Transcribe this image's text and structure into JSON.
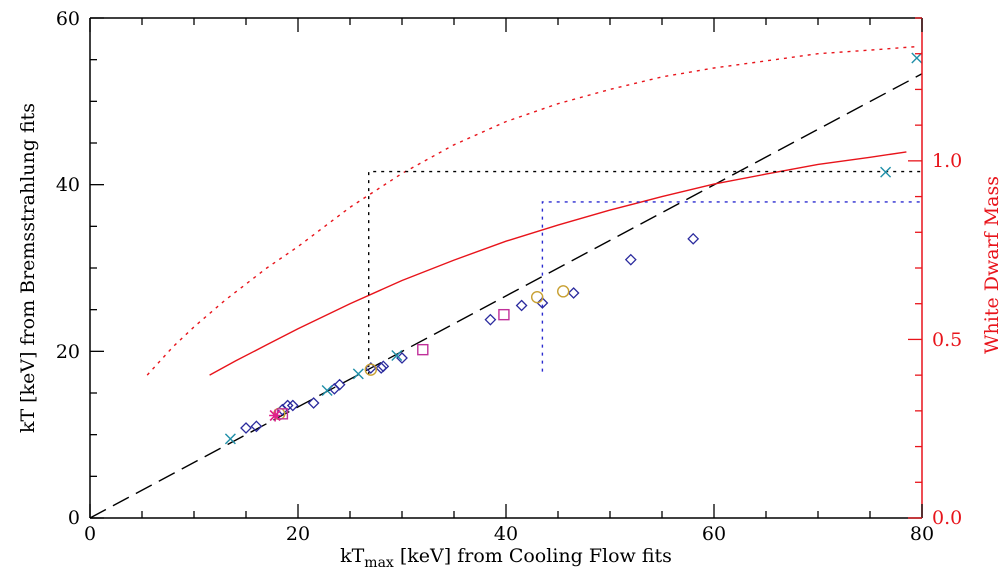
{
  "chart_data": {
    "type": "scatter",
    "title": "",
    "xlabel": {
      "main": "kT",
      "sub": "max",
      "rest": " [keV] from Cooling Flow fits"
    },
    "ylabel": "kT [keV] from Bremsstrahlung fits",
    "y2label": "White Dwarf Mass",
    "xlim": [
      0,
      80
    ],
    "ylim": [
      0,
      60
    ],
    "y2lim": [
      0.0,
      1.4
    ],
    "xticks": [
      "0",
      "20",
      "40",
      "60",
      "80"
    ],
    "yticks": [
      "0",
      "20",
      "40",
      "60"
    ],
    "y2ticks": [
      "0.0",
      "0.5",
      "1.0"
    ],
    "colors": {
      "axes": "#000000",
      "diamond": "#2b2b9e",
      "cross": "#1f8fa8",
      "circle": "#c8a032",
      "square": "#c0309a",
      "star": "#e0208a",
      "mass_curve": "#e8141b",
      "guide_black": "#000000",
      "guide_blue": "#2b2bd0"
    },
    "series": [
      {
        "marker": "diamond",
        "points": [
          [
            15,
            10.8
          ],
          [
            16,
            11
          ],
          [
            18.5,
            13
          ],
          [
            19,
            13.5
          ],
          [
            19.5,
            13.5
          ],
          [
            21.5,
            13.8
          ],
          [
            23.5,
            15.5
          ],
          [
            24,
            16
          ],
          [
            27,
            18
          ],
          [
            28,
            18
          ],
          [
            28.2,
            18.2
          ],
          [
            30,
            19.2
          ],
          [
            38.5,
            23.8
          ],
          [
            41.5,
            25.5
          ],
          [
            43.5,
            25.8
          ],
          [
            46.5,
            27
          ],
          [
            52,
            31
          ],
          [
            58,
            33.5
          ]
        ]
      },
      {
        "marker": "cross",
        "points": [
          [
            13.5,
            9.5
          ],
          [
            22.8,
            15.3
          ],
          [
            25.8,
            17.3
          ],
          [
            29.5,
            19.5
          ],
          [
            76.5,
            41.5
          ],
          [
            79.5,
            55.2
          ]
        ]
      },
      {
        "marker": "circle",
        "points": [
          [
            18.2,
            12.5
          ],
          [
            27,
            17.8
          ],
          [
            43,
            26.5
          ],
          [
            45.5,
            27.2
          ]
        ]
      },
      {
        "marker": "square",
        "points": [
          [
            18.5,
            12.5
          ],
          [
            32,
            20.2
          ],
          [
            39.8,
            24.4
          ]
        ]
      },
      {
        "marker": "star",
        "points": [
          [
            17.8,
            12.3
          ]
        ]
      }
    ],
    "lines": [
      {
        "kind": "one-to-one",
        "style": "dashed",
        "axis": "y",
        "x": [
          0,
          80
        ],
        "y": [
          0,
          53.3
        ]
      },
      {
        "kind": "mass-solid",
        "style": "solid",
        "axis": "y2",
        "x": [
          11.5,
          14,
          17,
          20,
          25,
          30,
          35,
          40,
          45,
          50,
          55,
          60,
          65,
          70,
          75,
          78.5
        ],
        "y": [
          0.4,
          0.44,
          0.485,
          0.53,
          0.6,
          0.665,
          0.722,
          0.775,
          0.82,
          0.862,
          0.9,
          0.935,
          0.963,
          0.99,
          1.01,
          1.025
        ]
      },
      {
        "kind": "mass-dotted",
        "style": "dotted",
        "axis": "y2",
        "x": [
          5.5,
          8,
          10,
          13,
          17,
          20,
          25,
          30,
          35,
          40,
          45,
          50,
          55,
          60,
          65,
          70,
          75,
          79.5
        ],
        "y": [
          0.4,
          0.48,
          0.535,
          0.61,
          0.7,
          0.76,
          0.87,
          0.965,
          1.045,
          1.11,
          1.16,
          1.2,
          1.235,
          1.26,
          1.28,
          1.3,
          1.31,
          1.32
        ]
      },
      {
        "kind": "guide-black",
        "style": "dotted",
        "axis": "y2",
        "x": [
          26.8,
          26.8,
          80
        ],
        "y": [
          0.4,
          0.97,
          0.97
        ]
      },
      {
        "kind": "guide-blue",
        "style": "dotted",
        "axis": "y2",
        "x": [
          43.5,
          43.5,
          80
        ],
        "y": [
          0.41,
          0.885,
          0.885
        ]
      }
    ]
  }
}
